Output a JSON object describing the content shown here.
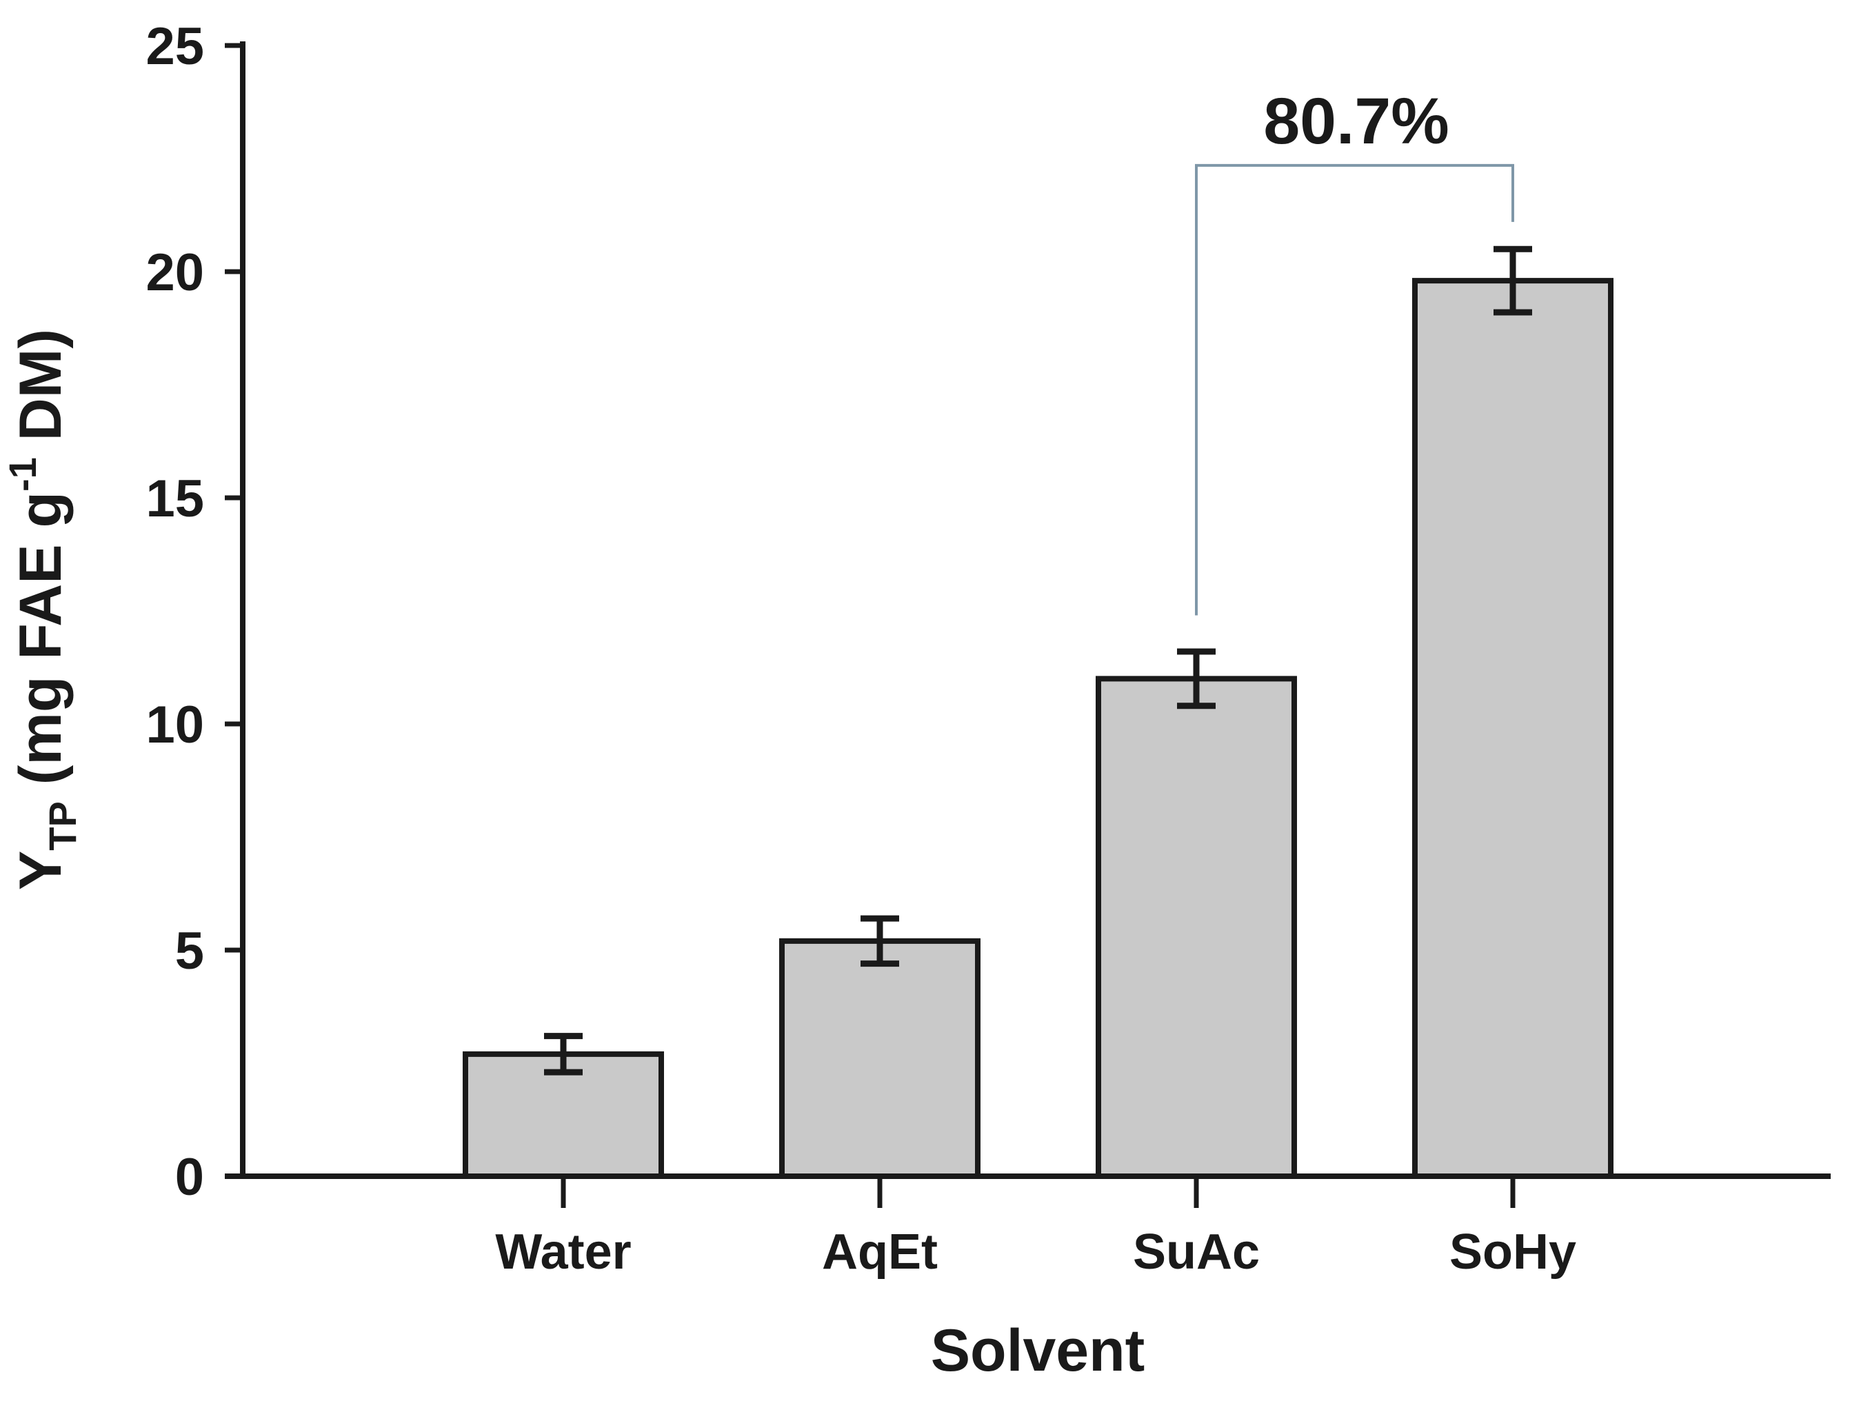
{
  "figure": {
    "background": "#ffffff"
  },
  "chart_data": {
    "type": "bar",
    "title": "",
    "categories": [
      "Water",
      "AqEt",
      "SuAc",
      "SoHy"
    ],
    "values": [
      2.7,
      5.2,
      11.0,
      19.8
    ],
    "errors": [
      0.4,
      0.5,
      0.6,
      0.7
    ],
    "xlabel": "Solvent",
    "ylabel": "Y_TP (mg FAE g^-1 DM)",
    "ylabel_parts": {
      "main": "Y",
      "sub": "TP",
      "mid": " (mg FAE g",
      "sup": "-1",
      "end": " DM)"
    },
    "ylim": [
      0,
      25
    ],
    "yticks": [
      "0",
      "5",
      "10",
      "15",
      "20",
      "25"
    ],
    "ytick_values": [
      0,
      5,
      10,
      15,
      20,
      25
    ],
    "grid": false,
    "legend": "none",
    "bar_fill": "#c9c9c9",
    "bar_edge": "#1a1a1a",
    "error_bar_color": "#1a1a1a",
    "annotation": {
      "label": "80.7%",
      "from_category": "SuAc",
      "to_category": "SoHy",
      "bracket_color": "#7f97a8",
      "top_value": 22.35,
      "from_end_value": 12.4,
      "to_end_value": 21.1
    }
  }
}
